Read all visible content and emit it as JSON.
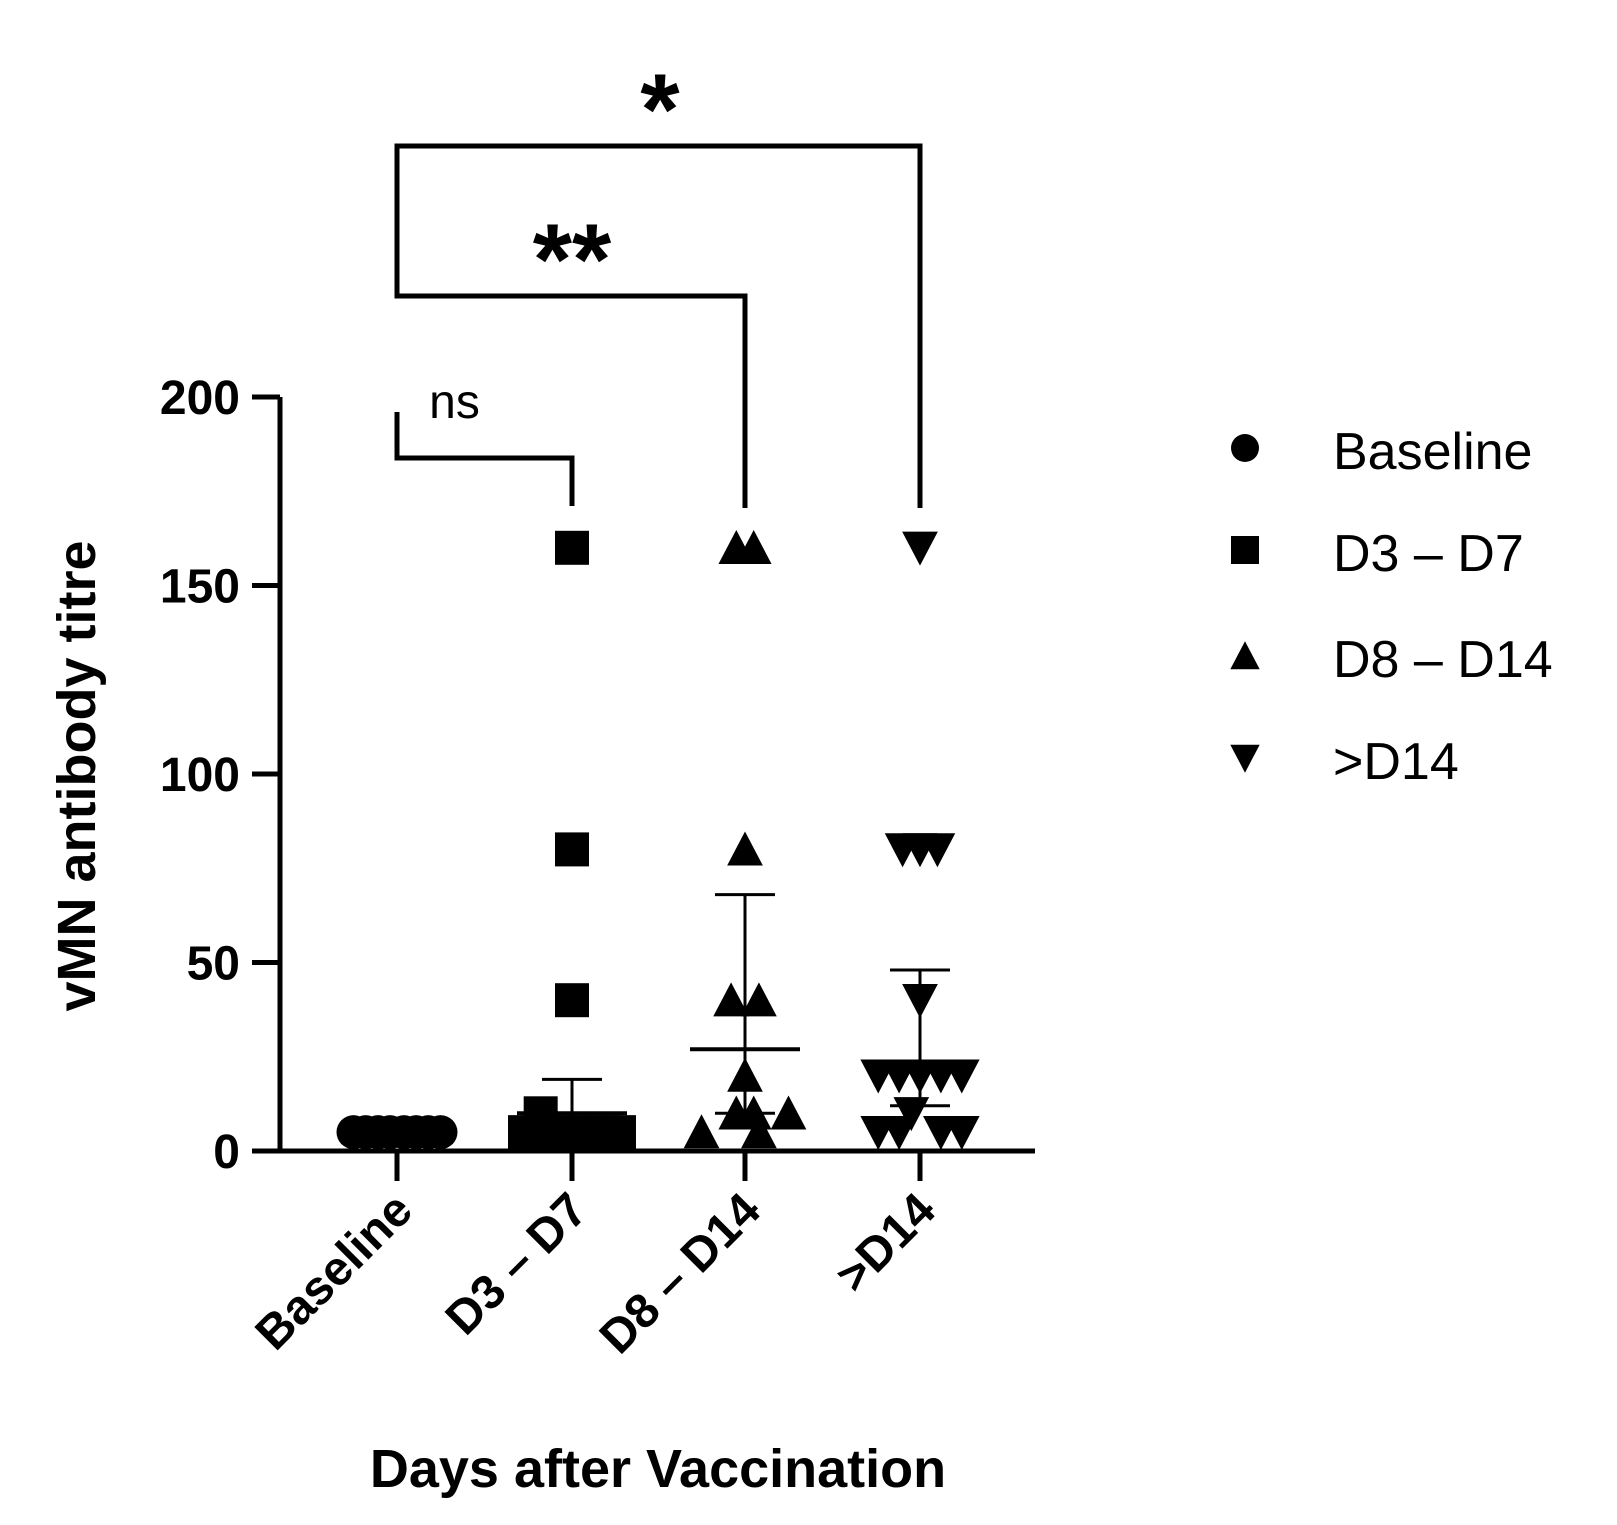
{
  "chart_data": {
    "type": "scatter",
    "xlabel": "Days after Vaccination",
    "ylabel": "vMN antibody titre",
    "ylim": [
      0,
      200
    ],
    "yticks": [
      0,
      50,
      100,
      150,
      200
    ],
    "categories": [
      "Baseline",
      "D3 – D7",
      "D8 – D14",
      ">D14"
    ],
    "legend_position": "right",
    "series": [
      {
        "name": "Baseline",
        "marker": "circle",
        "points": [
          {
            "dx": -0.25,
            "y": 5
          },
          {
            "dx": -0.18,
            "y": 5
          },
          {
            "dx": -0.11,
            "y": 5
          },
          {
            "dx": -0.04,
            "y": 5
          },
          {
            "dx": 0.04,
            "y": 5
          },
          {
            "dx": 0.11,
            "y": 5
          },
          {
            "dx": 0.18,
            "y": 5
          },
          {
            "dx": 0.25,
            "y": 5
          }
        ],
        "mean": 5,
        "error": [
          5,
          5
        ]
      },
      {
        "name": "D3 – D7",
        "marker": "square",
        "points": [
          {
            "dx": 0,
            "y": 160
          },
          {
            "dx": 0,
            "y": 80
          },
          {
            "dx": 0,
            "y": 40
          },
          {
            "dx": -0.18,
            "y": 10
          },
          {
            "dx": -0.09,
            "y": 5
          },
          {
            "dx": 0,
            "y": 5
          },
          {
            "dx": 0.09,
            "y": 5
          },
          {
            "dx": 0.18,
            "y": 5
          },
          {
            "dx": 0.27,
            "y": 5
          },
          {
            "dx": -0.27,
            "y": 5
          }
        ],
        "mean": 10,
        "error": [
          5,
          19
        ]
      },
      {
        "name": "D8 – D14",
        "marker": "triangle-up",
        "points": [
          {
            "dx": -0.05,
            "y": 160
          },
          {
            "dx": 0.05,
            "y": 160
          },
          {
            "dx": 0,
            "y": 80
          },
          {
            "dx": -0.08,
            "y": 40
          },
          {
            "dx": 0.08,
            "y": 40
          },
          {
            "dx": 0,
            "y": 20
          },
          {
            "dx": -0.05,
            "y": 10
          },
          {
            "dx": 0.05,
            "y": 10
          },
          {
            "dx": 0.25,
            "y": 10
          },
          {
            "dx": -0.25,
            "y": 5
          },
          {
            "dx": 0.08,
            "y": 5
          }
        ],
        "mean": 27,
        "error": [
          10,
          68
        ]
      },
      {
        "name": ">D14",
        "marker": "triangle-down",
        "points": [
          {
            "dx": 0,
            "y": 160
          },
          {
            "dx": -0.1,
            "y": 80
          },
          {
            "dx": 0,
            "y": 80
          },
          {
            "dx": 0.1,
            "y": 80
          },
          {
            "dx": 0,
            "y": 40
          },
          {
            "dx": -0.24,
            "y": 20
          },
          {
            "dx": -0.12,
            "y": 20
          },
          {
            "dx": 0,
            "y": 20
          },
          {
            "dx": 0.12,
            "y": 20
          },
          {
            "dx": 0.24,
            "y": 20
          },
          {
            "dx": -0.05,
            "y": 10
          },
          {
            "dx": -0.24,
            "y": 5
          },
          {
            "dx": -0.12,
            "y": 5
          },
          {
            "dx": 0.12,
            "y": 5
          },
          {
            "dx": 0.24,
            "y": 5
          }
        ],
        "mean": 23,
        "error": [
          12,
          48
        ]
      }
    ],
    "comparisons": [
      {
        "from": "Baseline",
        "to": "D3 – D7",
        "label": "ns"
      },
      {
        "from": "Baseline",
        "to": "D8 – D14",
        "label": "**"
      },
      {
        "from": "Baseline",
        "to": ">D14",
        "label": "*"
      }
    ]
  }
}
